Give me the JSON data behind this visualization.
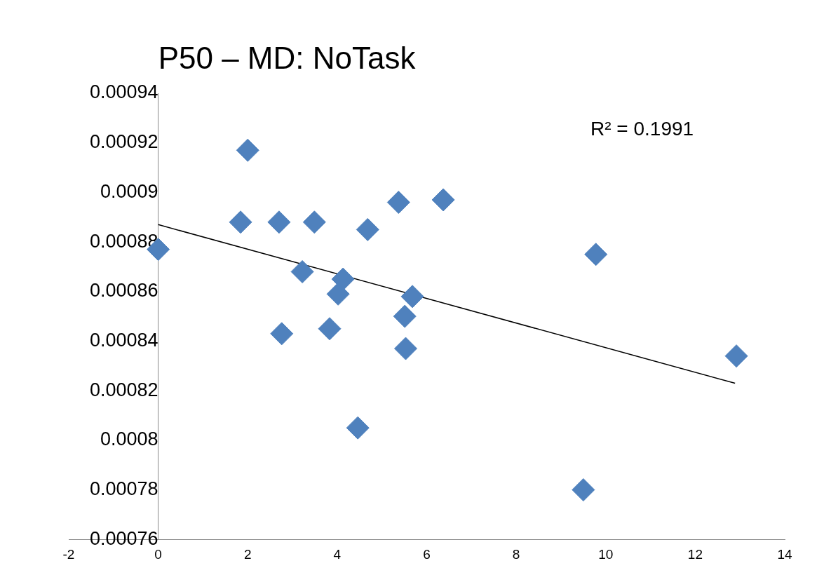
{
  "chart_data": {
    "type": "scatter",
    "title": "P50 – MD: NoTask",
    "legend": false,
    "grid": false,
    "annotations": [
      "R² = 0.1991"
    ],
    "xlim": [
      -2,
      14
    ],
    "xticks": [
      -2,
      0,
      2,
      4,
      6,
      8,
      10,
      12,
      14
    ],
    "ylim": [
      0.00076,
      0.00094
    ],
    "yticks": [
      0.00076,
      0.00078,
      0.0008,
      0.00082,
      0.00084,
      0.00086,
      0.00088,
      0.0009,
      0.00092,
      0.00094
    ],
    "series": [
      {
        "color": "#4f81bd",
        "marker": "diamond",
        "x": [
          0,
          2.0,
          1.84,
          2.7,
          3.49,
          2.76,
          3.22,
          4.13,
          4.02,
          3.83,
          4.68,
          5.37,
          6.37,
          5.68,
          5.51,
          5.53,
          4.46,
          9.78,
          9.5,
          12.92
        ],
        "values": [
          0.000877,
          0.000917,
          0.000888,
          0.000888,
          0.000888,
          0.000843,
          0.000868,
          0.000865,
          0.000859,
          0.000845,
          0.000885,
          0.000896,
          0.000897,
          0.000858,
          0.00085,
          0.000837,
          0.000805,
          0.000875,
          0.00078,
          0.000834
        ]
      },
      {
        "type": "line",
        "marker": "none",
        "color": "#000000",
        "x": [
          0,
          12.89
        ],
        "values": [
          0.000887,
          0.000823
        ]
      }
    ]
  }
}
